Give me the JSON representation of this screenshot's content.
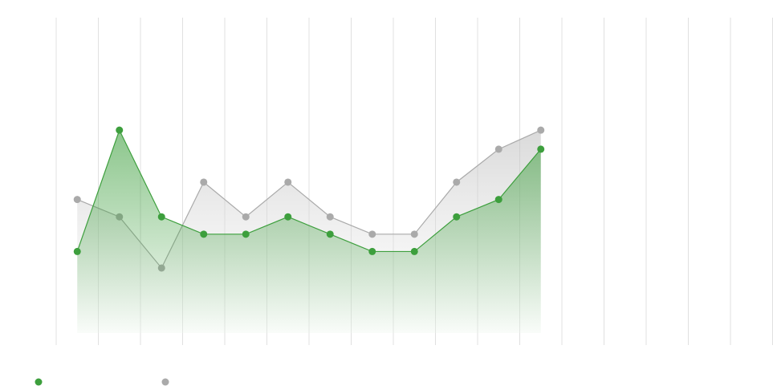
{
  "chart_data": {
    "type": "area",
    "categories": [
      null,
      null,
      null,
      null,
      null,
      null,
      null,
      null,
      null,
      null,
      null,
      null,
      null,
      null,
      null,
      null,
      null
    ],
    "series": [
      {
        "color": "#aaaaaa",
        "values": [
          7.7,
          6.7,
          3.75,
          8.7,
          6.7,
          8.7,
          6.7,
          5.7,
          5.7,
          8.7,
          10.6,
          11.7,
          null,
          null,
          null,
          null,
          null
        ]
      },
      {
        "color": "#3d9f3d",
        "values": [
          4.7,
          11.7,
          6.7,
          5.7,
          5.7,
          6.7,
          5.7,
          4.7,
          4.7,
          6.7,
          7.7,
          10.6,
          null,
          null,
          null,
          null,
          null
        ]
      }
    ],
    "ylim": [
      0,
      18
    ],
    "grid": true
  }
}
